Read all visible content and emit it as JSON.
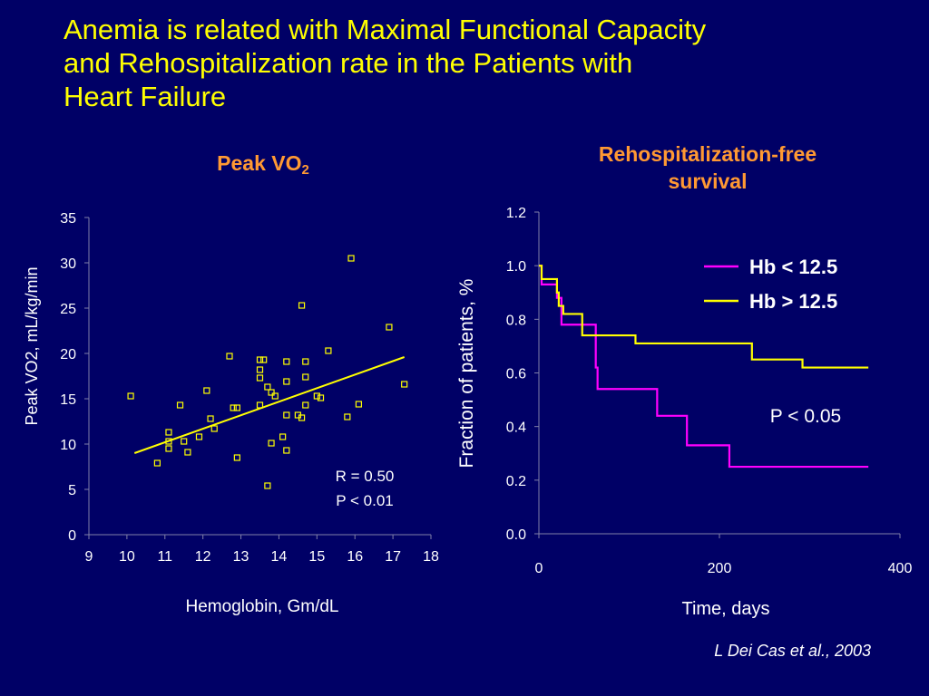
{
  "slide": {
    "title_lines": [
      "Anemia is related with Maximal Functional Capacity",
      "and Rehospitalization rate in the Patients with",
      "Heart Failure"
    ],
    "citation": "L Dei Cas et al., 2003"
  },
  "colors": {
    "background": "#000066",
    "title": "#ffff00",
    "panel_title": "#ff9933",
    "magenta": "#ff00ff",
    "yellow": "#ffff00",
    "text": "#ffffff"
  },
  "chart_data": [
    {
      "type": "scatter",
      "title_main": "Peak VO",
      "title_sub": "2",
      "xlabel": "Hemoglobin, Gm/dL",
      "ylabel": "Peak VO2, mL/kg/min",
      "xlim": [
        9,
        18
      ],
      "ylim": [
        0,
        35
      ],
      "xticks": [
        "9",
        "10",
        "11",
        "12",
        "13",
        "14",
        "15",
        "16",
        "17",
        "18"
      ],
      "yticks": [
        "0",
        "5",
        "10",
        "15",
        "20",
        "25",
        "30",
        "35"
      ],
      "annotation": [
        "R = 0.50",
        "P < 0.01"
      ],
      "regression": {
        "x": [
          10.2,
          17.3
        ],
        "y": [
          9.0,
          19.6
        ]
      },
      "points": [
        {
          "x": 10.1,
          "y": 15.3
        },
        {
          "x": 10.8,
          "y": 7.9
        },
        {
          "x": 11.1,
          "y": 9.5
        },
        {
          "x": 11.1,
          "y": 10.3
        },
        {
          "x": 11.1,
          "y": 11.3
        },
        {
          "x": 11.4,
          "y": 14.3
        },
        {
          "x": 11.5,
          "y": 10.3
        },
        {
          "x": 11.6,
          "y": 9.1
        },
        {
          "x": 11.9,
          "y": 10.8
        },
        {
          "x": 12.1,
          "y": 15.9
        },
        {
          "x": 12.2,
          "y": 12.8
        },
        {
          "x": 12.3,
          "y": 11.7
        },
        {
          "x": 12.7,
          "y": 19.7
        },
        {
          "x": 12.8,
          "y": 14.0
        },
        {
          "x": 12.9,
          "y": 8.5
        },
        {
          "x": 12.9,
          "y": 14.0
        },
        {
          "x": 13.5,
          "y": 19.3
        },
        {
          "x": 13.5,
          "y": 18.2
        },
        {
          "x": 13.5,
          "y": 17.3
        },
        {
          "x": 13.5,
          "y": 14.3
        },
        {
          "x": 13.6,
          "y": 19.3
        },
        {
          "x": 13.7,
          "y": 5.4
        },
        {
          "x": 13.7,
          "y": 16.3
        },
        {
          "x": 13.8,
          "y": 15.7
        },
        {
          "x": 13.8,
          "y": 10.1
        },
        {
          "x": 13.9,
          "y": 15.3
        },
        {
          "x": 14.1,
          "y": 10.8
        },
        {
          "x": 14.2,
          "y": 19.1
        },
        {
          "x": 14.2,
          "y": 16.9
        },
        {
          "x": 14.2,
          "y": 13.2
        },
        {
          "x": 14.2,
          "y": 9.3
        },
        {
          "x": 14.5,
          "y": 13.2
        },
        {
          "x": 14.6,
          "y": 12.9
        },
        {
          "x": 14.6,
          "y": 25.3
        },
        {
          "x": 14.7,
          "y": 19.1
        },
        {
          "x": 14.7,
          "y": 17.4
        },
        {
          "x": 14.7,
          "y": 14.3
        },
        {
          "x": 15.0,
          "y": 15.3
        },
        {
          "x": 15.1,
          "y": 15.1
        },
        {
          "x": 15.3,
          "y": 20.3
        },
        {
          "x": 15.8,
          "y": 13.0
        },
        {
          "x": 15.9,
          "y": 30.5
        },
        {
          "x": 16.1,
          "y": 14.4
        },
        {
          "x": 16.9,
          "y": 22.9
        },
        {
          "x": 17.3,
          "y": 16.6
        }
      ]
    },
    {
      "type": "line",
      "title_lines": [
        "Rehospitalization-free",
        "survival"
      ],
      "xlabel": "Time, days",
      "ylabel": "Fraction of patients, %",
      "xlim": [
        0,
        400
      ],
      "ylim": [
        0.0,
        1.2
      ],
      "xticks": [
        "0",
        "200",
        "400"
      ],
      "yticks": [
        "0.0",
        "0.2",
        "0.4",
        "0.6",
        "0.8",
        "1.0",
        "1.2"
      ],
      "annotation": "P < 0.05",
      "series": [
        {
          "name": "Hb < 12.5",
          "color": "#ff00ff",
          "x": [
            0,
            3,
            18,
            20,
            25,
            62,
            63,
            63,
            65,
            131,
            164,
            211,
            365
          ],
          "y": [
            1.0,
            0.93,
            0.93,
            0.88,
            0.78,
            0.78,
            0.63,
            0.62,
            0.54,
            0.44,
            0.33,
            0.25,
            0.25
          ]
        },
        {
          "name": "Hb > 12.5",
          "color": "#ffff00",
          "x": [
            0,
            3,
            20,
            22,
            27,
            33,
            48,
            107,
            236,
            292,
            365
          ],
          "y": [
            1.0,
            0.95,
            0.9,
            0.85,
            0.82,
            0.82,
            0.74,
            0.71,
            0.65,
            0.62,
            0.62
          ]
        }
      ]
    }
  ]
}
